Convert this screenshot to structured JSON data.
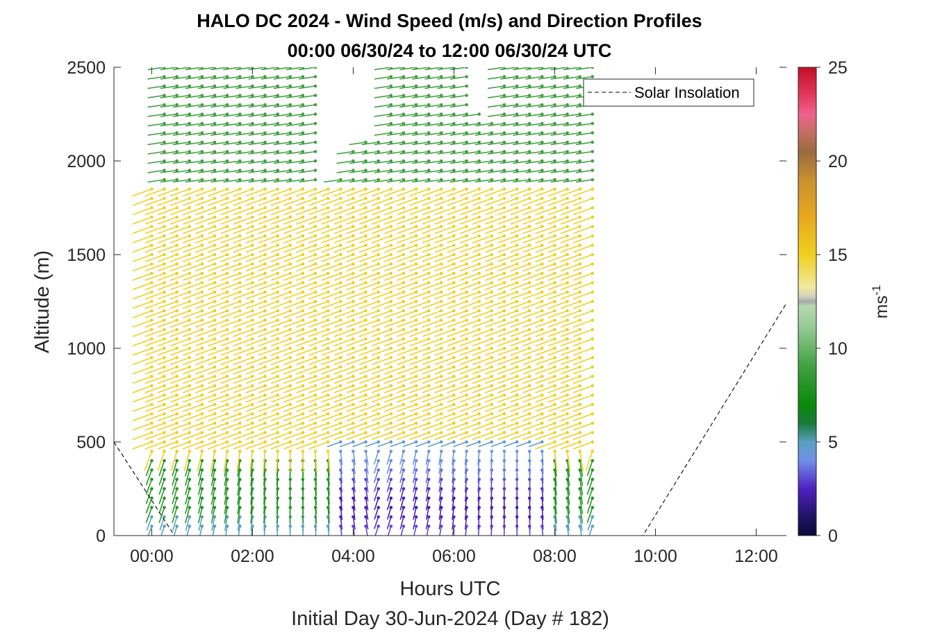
{
  "chart_data": {
    "type": "wind-barb-profile",
    "title_line1": "HALO DC 2024 - Wind Speed (m/s) and Direction Profiles",
    "title_line2": "00:00 06/30/24 to 12:00 06/30/24  UTC",
    "xlabel": "Hours UTC",
    "xlabel2": "Initial Day 30-Jun-2024 (Day # 182)",
    "ylabel": "Altitude (m)",
    "colorbar_label": "ms",
    "colorbar_label_exp": "-1",
    "xlim": [
      -0.75,
      12.6
    ],
    "ylim": [
      0,
      2500
    ],
    "xticks": [
      0,
      2,
      4,
      6,
      8,
      10,
      12
    ],
    "xtick_labels": [
      "00:00",
      "02:00",
      "04:00",
      "06:00",
      "08:00",
      "10:00",
      "12:00"
    ],
    "yticks": [
      0,
      500,
      1000,
      1500,
      2000,
      2500
    ],
    "ytick_labels": [
      "0",
      "500",
      "1000",
      "1500",
      "2000",
      "2500"
    ],
    "clim": [
      0,
      25
    ],
    "cticks": [
      0,
      5,
      10,
      15,
      20,
      25
    ],
    "ctick_labels": [
      "0",
      "5",
      "10",
      "15",
      "20",
      "25"
    ],
    "legend": {
      "label": "Solar Insolation",
      "location": "top-right",
      "style": "dashed",
      "color": "#000000"
    },
    "solar_insolation": {
      "x": [
        -0.75,
        0.45,
        9.75,
        12.6
      ],
      "y": [
        500,
        0,
        0,
        1240
      ]
    },
    "wind_profiles": {
      "time_start_h": 0.0,
      "time_step_h": 0.25,
      "time_end_h": 8.75,
      "altitude_step_m": 50,
      "columns": [
        {
          "t": 0.0,
          "top": 1850
        },
        {
          "t": 0.25,
          "top": 2500
        },
        {
          "t": 0.5,
          "top": 2500
        },
        {
          "t": 0.75,
          "top": 2500
        },
        {
          "t": 1.0,
          "top": 2500
        },
        {
          "t": 1.25,
          "top": 2500
        },
        {
          "t": 1.5,
          "top": 2500
        },
        {
          "t": 1.75,
          "top": 2500
        },
        {
          "t": 2.0,
          "top": 2500
        },
        {
          "t": 2.25,
          "top": 2500
        },
        {
          "t": 2.5,
          "top": 2500
        },
        {
          "t": 2.75,
          "top": 2500
        },
        {
          "t": 3.0,
          "top": 2500
        },
        {
          "t": 3.25,
          "top": 2500
        },
        {
          "t": 3.5,
          "top": 1850
        },
        {
          "t": 3.75,
          "top": 1900
        },
        {
          "t": 4.0,
          "top": 2050
        },
        {
          "t": 4.25,
          "top": 2100
        },
        {
          "t": 4.5,
          "top": 2100
        },
        {
          "t": 4.75,
          "top": 2500
        },
        {
          "t": 5.0,
          "top": 2500
        },
        {
          "t": 5.25,
          "top": 2500
        },
        {
          "t": 5.5,
          "top": 2500
        },
        {
          "t": 5.75,
          "top": 2500
        },
        {
          "t": 6.0,
          "top": 2500
        },
        {
          "t": 6.25,
          "top": 2500
        },
        {
          "t": 6.5,
          "top": 2250
        },
        {
          "t": 6.75,
          "top": 2200
        },
        {
          "t": 7.0,
          "top": 2500
        },
        {
          "t": 7.25,
          "top": 2500
        },
        {
          "t": 7.5,
          "top": 2500
        },
        {
          "t": 7.75,
          "top": 2500
        },
        {
          "t": 8.0,
          "top": 2500
        },
        {
          "t": 8.25,
          "top": 2500
        },
        {
          "t": 8.5,
          "top": 2500
        },
        {
          "t": 8.75,
          "top": 2500
        }
      ],
      "speed_layers_ms": [
        {
          "from_alt": 0,
          "to_alt": 150,
          "speed": 5
        },
        {
          "from_alt": 150,
          "to_alt": 450,
          "speed": 8
        },
        {
          "from_alt": 450,
          "to_alt": 1900,
          "speed": 15
        },
        {
          "from_alt": 1900,
          "to_alt": 2500,
          "speed": 9
        }
      ],
      "nocturnal_low_jet": {
        "t_from": 3.75,
        "t_to": 7.75,
        "alt_to": 500,
        "speed": 2
      }
    }
  }
}
